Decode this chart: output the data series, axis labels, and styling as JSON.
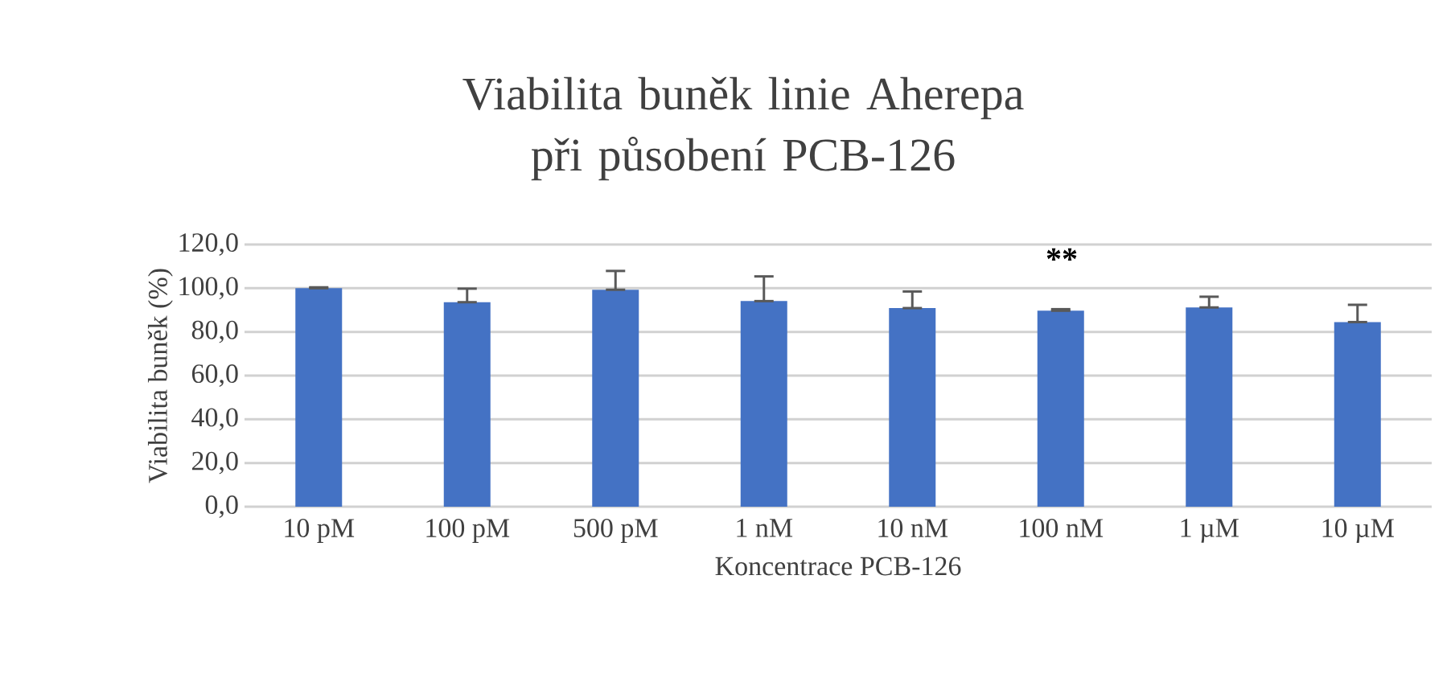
{
  "chart_data": {
    "type": "bar",
    "title": "Viabilita buněk linie Aherepa při působení PCB-126",
    "xlabel": "Koncentrace PCB-126",
    "ylabel": "Viabilita buněk (%)",
    "categories": [
      "10 pM",
      "100 pM",
      "500 pM",
      "1 nM",
      "10 nM",
      "100 nM",
      "1 µM",
      "10 µM"
    ],
    "values": [
      100,
      93.6,
      99.3,
      94.1,
      90.9,
      89.7,
      91.2,
      84.5
    ],
    "errors": [
      [
        100,
        100.4
      ],
      [
        93.6,
        99.8
      ],
      [
        99.3,
        107.9
      ],
      [
        94.1,
        105.4
      ],
      [
        90.9,
        98.5
      ],
      [
        89.7,
        90.4
      ],
      [
        91.2,
        96.1
      ],
      [
        84.5,
        92.4
      ]
    ],
    "color": "#4472c4",
    "ylim": [
      0,
      120
    ],
    "yticks": [
      {
        "value": 0,
        "label": "0,0"
      },
      {
        "value": 20,
        "label": "20,0"
      },
      {
        "value": 40,
        "label": "40,0"
      },
      {
        "value": 60,
        "label": "60,0"
      },
      {
        "value": 80,
        "label": "80,0"
      },
      {
        "value": 100,
        "label": "100,0"
      },
      {
        "value": 120,
        "label": "120,0"
      }
    ],
    "grid": "y",
    "annotations": [
      "**"
    ]
  }
}
